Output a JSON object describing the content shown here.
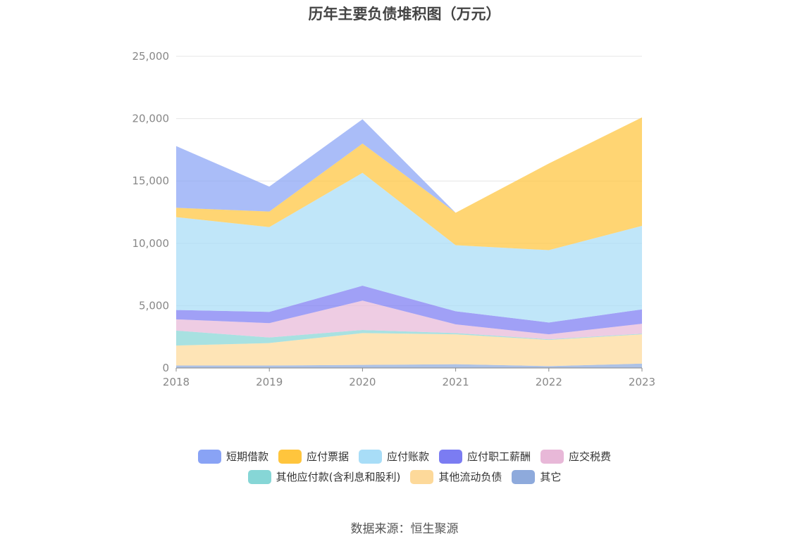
{
  "chart_data": {
    "type": "area",
    "stacked": true,
    "title": "历年主要负债堆积图（万元）",
    "categories": [
      "2018",
      "2019",
      "2020",
      "2021",
      "2022",
      "2023"
    ],
    "y_ticks": [
      "0",
      "5,000",
      "10,000",
      "15,000",
      "20,000",
      "25,000"
    ],
    "ylim": [
      0,
      25000
    ],
    "grid": true,
    "legend_position": "bottom",
    "series": [
      {
        "name": "其它",
        "color": "#8eaadc",
        "values": [
          200,
          200,
          250,
          300,
          150,
          350
        ]
      },
      {
        "name": "其他流动负债",
        "color": "#fdd99a",
        "values": [
          1600,
          1800,
          2550,
          2400,
          2100,
          2350
        ]
      },
      {
        "name": "其他应付款(含利息和股利)",
        "color": "#86d6d6",
        "values": [
          1200,
          450,
          250,
          100,
          50,
          50
        ]
      },
      {
        "name": "应交税费",
        "color": "#e8b8d8",
        "values": [
          900,
          1150,
          2350,
          700,
          400,
          800
        ]
      },
      {
        "name": "应付职工薪酬",
        "color": "#7b7cf2",
        "values": [
          750,
          900,
          1200,
          1050,
          950,
          1150
        ]
      },
      {
        "name": "应付账款",
        "color": "#a8ddf7",
        "values": [
          7450,
          6800,
          9050,
          5300,
          5800,
          6700
        ]
      },
      {
        "name": "应付票据",
        "color": "#ffc53d",
        "values": [
          750,
          1250,
          2350,
          2600,
          6950,
          8700
        ]
      },
      {
        "name": "短期借款",
        "color": "#89a3f5",
        "values": [
          4950,
          2000,
          1950,
          0,
          0,
          0
        ]
      }
    ]
  },
  "legend": {
    "row1": [
      {
        "label": "短期借款",
        "color": "#89a3f5"
      },
      {
        "label": "应付票据",
        "color": "#ffc53d"
      },
      {
        "label": "应付账款",
        "color": "#a8ddf7"
      },
      {
        "label": "应付职工薪酬",
        "color": "#7b7cf2"
      },
      {
        "label": "应交税费",
        "color": "#e8b8d8"
      }
    ],
    "row2": [
      {
        "label": "其他应付款(含利息和股利)",
        "color": "#86d6d6"
      },
      {
        "label": "其他流动负债",
        "color": "#fdd99a"
      },
      {
        "label": "其它",
        "color": "#8eaadc"
      }
    ]
  },
  "source": "数据来源：恒生聚源"
}
